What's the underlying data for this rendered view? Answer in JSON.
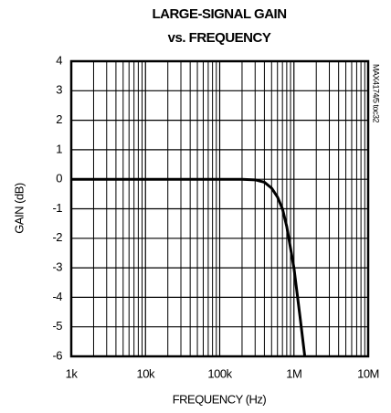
{
  "chart_data": {
    "type": "line",
    "title": [
      "LARGE-SIGNAL GAIN",
      "vs. FREQUENCY"
    ],
    "annotation": "MAX4174/5 toc32",
    "xlabel": "FREQUENCY (Hz)",
    "ylabel": "GAIN (dB)",
    "xscale": "log",
    "xlim": [
      1000,
      10000000
    ],
    "xticks": [
      {
        "value": 1000,
        "label": "1k"
      },
      {
        "value": 10000,
        "label": "10k"
      },
      {
        "value": 100000,
        "label": "100k"
      },
      {
        "value": 1000000,
        "label": "1M"
      },
      {
        "value": 10000000,
        "label": "10M"
      }
    ],
    "ylim": [
      -6,
      4
    ],
    "yticks": [
      -6,
      -5,
      -4,
      -3,
      -2,
      -1,
      0,
      1,
      2,
      3,
      4
    ],
    "grid": true,
    "series": [
      {
        "color": "#000000",
        "x": [
          1000,
          10000,
          100000,
          200000,
          300000,
          400000,
          500000,
          600000,
          700000,
          800000,
          1000000,
          1200000,
          1400000
        ],
        "values": [
          0,
          0,
          0,
          0,
          -0.02,
          -0.1,
          -0.3,
          -0.6,
          -1.0,
          -1.6,
          -3.0,
          -4.6,
          -6.0
        ]
      }
    ]
  }
}
